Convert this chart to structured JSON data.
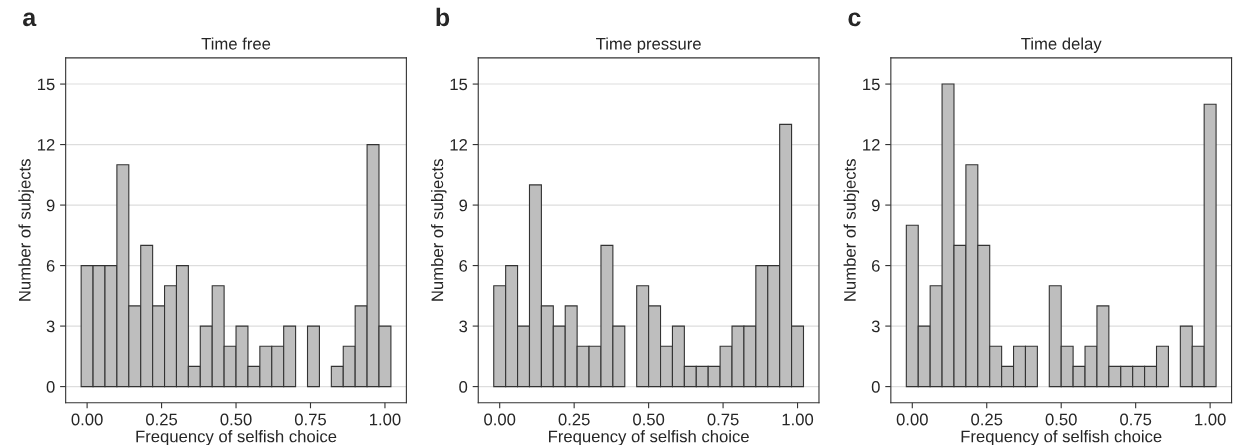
{
  "chart_data": [
    {
      "type": "histogram",
      "title": "Time free",
      "xlabel": "Frequency of selfish choice",
      "ylabel": "Number of subjects",
      "annotations": [
        "a"
      ],
      "bins": [
        -0.02,
        0.02,
        0.06,
        0.1,
        0.14,
        0.18,
        0.22,
        0.26,
        0.3,
        0.34,
        0.38,
        0.42,
        0.46,
        0.5,
        0.54,
        0.58,
        0.62,
        0.66,
        0.7,
        0.74,
        0.78,
        0.82,
        0.86,
        0.9,
        0.94,
        0.98,
        1.02
      ],
      "values": [
        6,
        6,
        6,
        11,
        4,
        7,
        4,
        5,
        6,
        1,
        3,
        5,
        2,
        3,
        1,
        2,
        2,
        3,
        0,
        3,
        0,
        1,
        2,
        4,
        12,
        3
      ],
      "color": "#bebebe",
      "xlim": [
        -0.072,
        1.072
      ],
      "ylim": [
        -0.8,
        16.3
      ],
      "xticks": [
        {
          "value": 0,
          "label": "0.00"
        },
        {
          "value": 0.25,
          "label": "0.25"
        },
        {
          "value": 0.5,
          "label": "0.50"
        },
        {
          "value": 0.75,
          "label": "0.75"
        },
        {
          "value": 1,
          "label": "1.00"
        }
      ],
      "yticks": [
        0,
        3,
        6,
        9,
        12,
        15
      ],
      "grid": "y"
    },
    {
      "type": "histogram",
      "title": "Time pressure",
      "xlabel": "Frequency of selfish choice",
      "ylabel": "Number of subjects",
      "annotations": [
        "b"
      ],
      "bins": [
        -0.02,
        0.02,
        0.06,
        0.1,
        0.14,
        0.18,
        0.22,
        0.26,
        0.3,
        0.34,
        0.38,
        0.42,
        0.46,
        0.5,
        0.54,
        0.58,
        0.62,
        0.66,
        0.7,
        0.74,
        0.78,
        0.82,
        0.86,
        0.9,
        0.94,
        0.98,
        1.02
      ],
      "values": [
        5,
        6,
        3,
        10,
        4,
        3,
        4,
        2,
        2,
        7,
        3,
        0,
        5,
        4,
        2,
        3,
        1,
        1,
        1,
        2,
        3,
        3,
        6,
        6,
        13,
        3
      ],
      "color": "#bebebe",
      "xlim": [
        -0.072,
        1.072
      ],
      "ylim": [
        -0.8,
        16.3
      ],
      "xticks": [
        {
          "value": 0,
          "label": "0.00"
        },
        {
          "value": 0.25,
          "label": "0.25"
        },
        {
          "value": 0.5,
          "label": "0.50"
        },
        {
          "value": 0.75,
          "label": "0.75"
        },
        {
          "value": 1,
          "label": "1.00"
        }
      ],
      "yticks": [
        0,
        3,
        6,
        9,
        12,
        15
      ],
      "grid": "y"
    },
    {
      "type": "histogram",
      "title": "Time delay",
      "xlabel": "Frequency of selfish choice",
      "ylabel": "Number of subjects",
      "annotations": [
        "c"
      ],
      "bins": [
        -0.02,
        0.02,
        0.06,
        0.1,
        0.14,
        0.18,
        0.22,
        0.26,
        0.3,
        0.34,
        0.38,
        0.42,
        0.46,
        0.5,
        0.54,
        0.58,
        0.62,
        0.66,
        0.7,
        0.74,
        0.78,
        0.82,
        0.86,
        0.9,
        0.94,
        0.98,
        1.02
      ],
      "values": [
        8,
        3,
        5,
        15,
        7,
        11,
        7,
        2,
        1,
        2,
        2,
        0,
        5,
        2,
        1,
        2,
        4,
        1,
        1,
        1,
        1,
        2,
        0,
        3,
        2,
        14
      ],
      "color": "#bebebe",
      "xlim": [
        -0.072,
        1.072
      ],
      "ylim": [
        -0.8,
        16.3
      ],
      "xticks": [
        {
          "value": 0,
          "label": "0.00"
        },
        {
          "value": 0.25,
          "label": "0.25"
        },
        {
          "value": 0.5,
          "label": "0.50"
        },
        {
          "value": 0.75,
          "label": "0.75"
        },
        {
          "value": 1,
          "label": "1.00"
        }
      ],
      "yticks": [
        0,
        3,
        6,
        9,
        12,
        15
      ],
      "grid": "y"
    }
  ]
}
